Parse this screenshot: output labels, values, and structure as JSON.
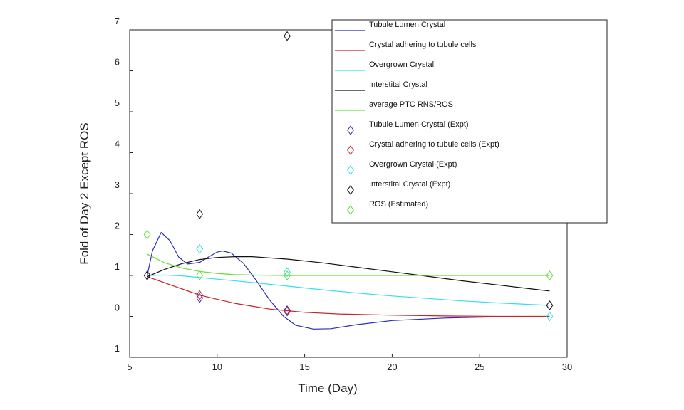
{
  "chart_data": {
    "type": "line",
    "xlabel": "Time (Day)",
    "ylabel": "Fold of Day 2 Except ROS",
    "xlim": [
      5,
      30
    ],
    "ylim": [
      -1,
      7
    ],
    "x_ticks": [
      5,
      10,
      15,
      20,
      25,
      30
    ],
    "y_ticks": [
      -1,
      0,
      1,
      2,
      3,
      4,
      5,
      6,
      7
    ],
    "grid": false,
    "legend_position": "top-right",
    "series": [
      {
        "name": "Tubule Lumen Crystal",
        "kind": "line",
        "color": "#2b2bb3",
        "points": [
          [
            6,
            1.0
          ],
          [
            6.3,
            1.6
          ],
          [
            6.8,
            2.05
          ],
          [
            7.3,
            1.85
          ],
          [
            7.8,
            1.45
          ],
          [
            8.3,
            1.28
          ],
          [
            9,
            1.32
          ],
          [
            9.5,
            1.45
          ],
          [
            10,
            1.57
          ],
          [
            10.3,
            1.6
          ],
          [
            10.8,
            1.55
          ],
          [
            11.5,
            1.3
          ],
          [
            12.2,
            0.9
          ],
          [
            13,
            0.4
          ],
          [
            13.8,
            0.0
          ],
          [
            14.5,
            -0.22
          ],
          [
            15.5,
            -0.31
          ],
          [
            16.5,
            -0.3
          ],
          [
            18,
            -0.2
          ],
          [
            20,
            -0.1
          ],
          [
            23,
            -0.04
          ],
          [
            26,
            -0.01
          ],
          [
            29,
            0.0
          ]
        ]
      },
      {
        "name": "Crystal adhering to tubule cells",
        "kind": "line",
        "color": "#cc2222",
        "points": [
          [
            6,
            0.97
          ],
          [
            7,
            0.82
          ],
          [
            8,
            0.67
          ],
          [
            9,
            0.52
          ],
          [
            10,
            0.42
          ],
          [
            11,
            0.32
          ],
          [
            12,
            0.25
          ],
          [
            13,
            0.18
          ],
          [
            14,
            0.14
          ],
          [
            15,
            0.1
          ],
          [
            17,
            0.06
          ],
          [
            20,
            0.03
          ],
          [
            23,
            0.01
          ],
          [
            26,
            0.0
          ],
          [
            29,
            0.0
          ]
        ]
      },
      {
        "name": "Overgrown Crystal",
        "kind": "line",
        "color": "#33e0ee",
        "points": [
          [
            6,
            1.0
          ],
          [
            7,
            1.01
          ],
          [
            8,
            0.99
          ],
          [
            9,
            0.95
          ],
          [
            10,
            0.91
          ],
          [
            12,
            0.83
          ],
          [
            14,
            0.74
          ],
          [
            16,
            0.65
          ],
          [
            18,
            0.57
          ],
          [
            20,
            0.5
          ],
          [
            22,
            0.44
          ],
          [
            24,
            0.38
          ],
          [
            26,
            0.33
          ],
          [
            29,
            0.27
          ]
        ]
      },
      {
        "name": "Interstital Crystal",
        "kind": "line",
        "color": "#111111",
        "points": [
          [
            6,
            0.97
          ],
          [
            7,
            1.15
          ],
          [
            8,
            1.29
          ],
          [
            9,
            1.39
          ],
          [
            10,
            1.44
          ],
          [
            11,
            1.46
          ],
          [
            12,
            1.46
          ],
          [
            14,
            1.4
          ],
          [
            16,
            1.31
          ],
          [
            18,
            1.2
          ],
          [
            20,
            1.09
          ],
          [
            22,
            0.98
          ],
          [
            24,
            0.87
          ],
          [
            26,
            0.77
          ],
          [
            28,
            0.67
          ],
          [
            29,
            0.62
          ]
        ]
      },
      {
        "name": "average PTC RNS/ROS",
        "kind": "line",
        "color": "#66dd33",
        "points": [
          [
            6,
            1.52
          ],
          [
            7,
            1.31
          ],
          [
            8,
            1.18
          ],
          [
            9,
            1.1
          ],
          [
            10,
            1.05
          ],
          [
            11,
            1.02
          ],
          [
            12,
            1.01
          ],
          [
            14,
            1.0
          ],
          [
            18,
            1.0
          ],
          [
            22,
            1.0
          ],
          [
            26,
            1.0
          ],
          [
            29,
            1.0
          ]
        ]
      },
      {
        "name": "Tubule Lumen Crystal (Expt)",
        "kind": "marker",
        "color": "#2b2bb3",
        "points": [
          [
            9,
            0.45
          ],
          [
            14,
            0.15
          ]
        ]
      },
      {
        "name": "Crystal adhering to tubule cells  (Expt)",
        "kind": "marker",
        "color": "#cc2222",
        "points": [
          [
            9,
            0.52
          ],
          [
            14,
            0.12
          ]
        ]
      },
      {
        "name": "Overgrown Crystal (Expt)",
        "kind": "marker",
        "color": "#33e0ee",
        "points": [
          [
            9,
            1.65
          ],
          [
            14,
            1.08
          ],
          [
            29,
            0.0
          ]
        ]
      },
      {
        "name": "Interstital Crystal (Expt)",
        "kind": "marker",
        "color": "#111111",
        "points": [
          [
            6,
            1.0
          ],
          [
            9,
            2.5
          ],
          [
            14,
            6.85
          ],
          [
            29,
            0.27
          ]
        ]
      },
      {
        "name": "ROS (Estimated)",
        "kind": "marker",
        "color": "#66dd33",
        "points": [
          [
            6,
            2.0
          ],
          [
            9,
            1.0
          ],
          [
            14,
            1.0
          ],
          [
            29,
            1.0
          ]
        ]
      }
    ]
  }
}
